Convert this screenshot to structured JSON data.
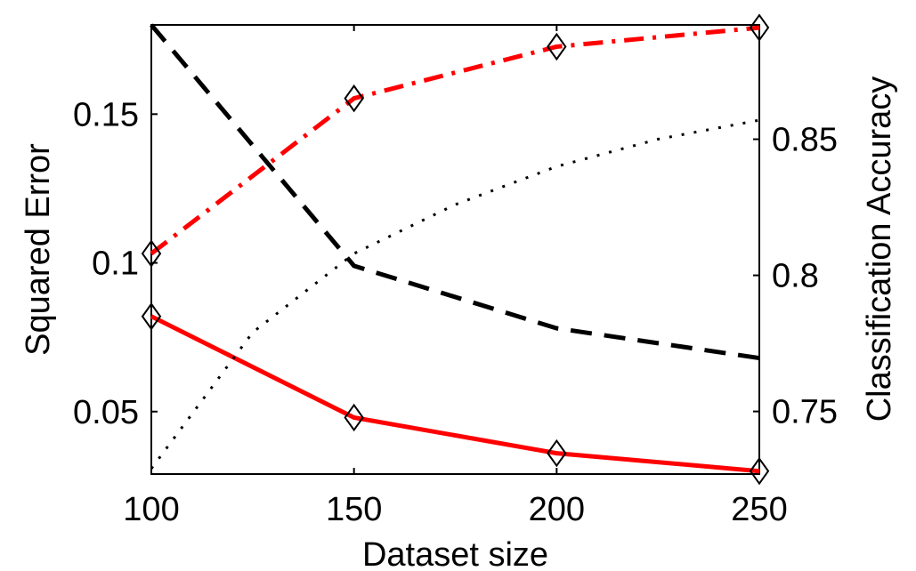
{
  "chart_data": {
    "type": "line",
    "title": "",
    "xlabel": "Dataset size",
    "ylabel_left": "Squared Error",
    "ylabel_right": "Classification Accuracy",
    "x": [
      100,
      150,
      200,
      250
    ],
    "xlim": [
      100,
      250
    ],
    "ylim_left": [
      0.029,
      0.18
    ],
    "ylim_right": [
      0.727,
      0.892
    ],
    "x_ticks": [
      "100",
      "150",
      "200",
      "250"
    ],
    "y_left_ticks": [
      "0.05",
      "0.1",
      "0.15"
    ],
    "y_right_ticks": [
      "0.75",
      "0.8",
      "0.85"
    ],
    "grid": false,
    "series": [
      {
        "axis": "left",
        "style": "solid",
        "color": "#ff0000",
        "marker": "diamond",
        "x": [
          100,
          150,
          200,
          250
        ],
        "values": [
          0.082,
          0.048,
          0.036,
          0.03
        ]
      },
      {
        "axis": "left",
        "style": "dashed",
        "color": "#000000",
        "marker": "none",
        "x": [
          100,
          150,
          200,
          250
        ],
        "values": [
          0.18,
          0.099,
          0.078,
          0.068
        ]
      },
      {
        "axis": "right",
        "style": "dashdot",
        "color": "#ff0000",
        "marker": "diamond",
        "x": [
          100,
          150,
          200,
          250
        ],
        "values": [
          0.808,
          0.865,
          0.884,
          0.891
        ]
      },
      {
        "axis": "right",
        "style": "dotted",
        "color": "#000000",
        "marker": "none",
        "x": [
          100,
          125,
          150,
          175,
          200,
          225,
          250
        ],
        "values": [
          0.729,
          0.779,
          0.808,
          0.826,
          0.84,
          0.85,
          0.857
        ]
      }
    ]
  }
}
